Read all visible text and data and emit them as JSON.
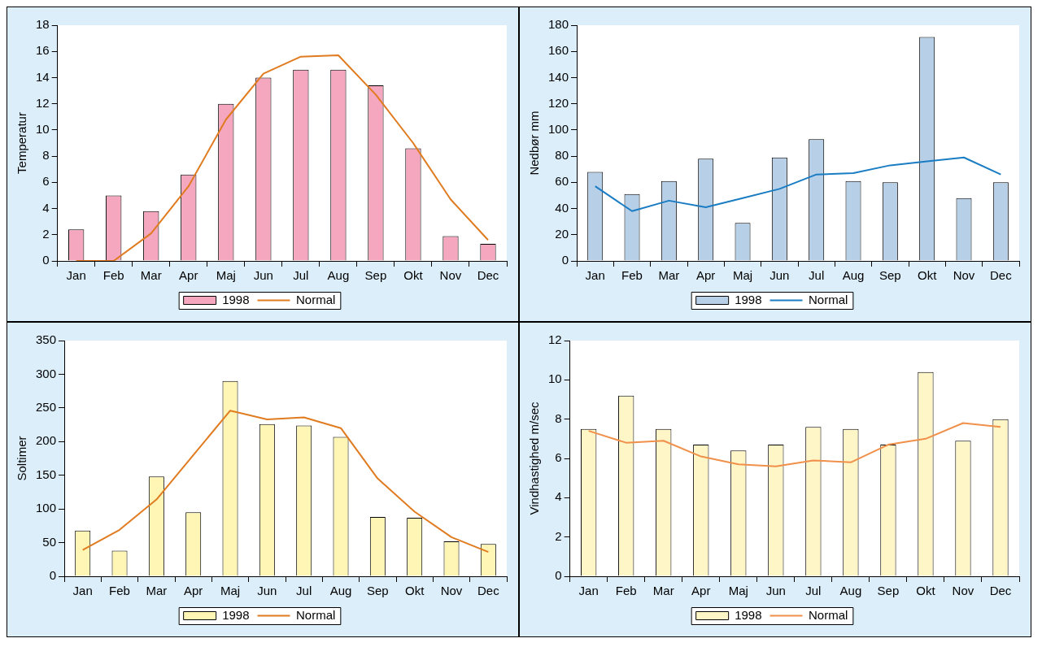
{
  "chart_data": [
    {
      "type": "bar",
      "ylabel": "Temperatur",
      "categories": [
        "Jan",
        "Feb",
        "Mar",
        "Apr",
        "Maj",
        "Jun",
        "Jul",
        "Aug",
        "Sep",
        "Okt",
        "Nov",
        "Dec"
      ],
      "ylim": [
        0,
        18
      ],
      "yticks": [
        0,
        2,
        4,
        6,
        8,
        10,
        12,
        14,
        16,
        18
      ],
      "grid": false,
      "legend": "bottom",
      "marker": "none",
      "series": [
        {
          "name": "1998",
          "color": "#f4a7bf",
          "values": [
            2.4,
            5.0,
            3.8,
            6.6,
            12.0,
            14.0,
            14.6,
            14.6,
            13.4,
            8.6,
            1.9,
            1.3
          ]
        },
        {
          "name": "Normal",
          "type": "line",
          "color": "#e07b20",
          "values": [
            0,
            0,
            2.1,
            5.7,
            10.8,
            14.3,
            15.6,
            15.7,
            12.7,
            9.0,
            4.7,
            1.6
          ]
        }
      ]
    },
    {
      "type": "bar",
      "ylabel": "Nedbør mm",
      "categories": [
        "Jan",
        "Feb",
        "Mar",
        "Apr",
        "Maj",
        "Jun",
        "Jul",
        "Aug",
        "Sep",
        "Okt",
        "Nov",
        "Dec"
      ],
      "ylim": [
        0,
        180
      ],
      "yticks": [
        0,
        20,
        40,
        60,
        80,
        100,
        120,
        140,
        160,
        180
      ],
      "grid": false,
      "legend": "bottom",
      "marker": "none",
      "series": [
        {
          "name": "1998",
          "color": "#b8cfe8",
          "values": [
            68,
            51,
            61,
            78,
            29,
            79,
            93,
            61,
            60,
            171,
            48,
            60
          ]
        },
        {
          "name": "Normal",
          "type": "line",
          "color": "#1a7dc4",
          "values": [
            57,
            38,
            46,
            41,
            48,
            55,
            66,
            67,
            73,
            76,
            79,
            66
          ]
        }
      ]
    },
    {
      "type": "bar",
      "ylabel": "Soltimer",
      "categories": [
        "Jan",
        "Feb",
        "Mar",
        "Apr",
        "Maj",
        "Jun",
        "Jul",
        "Aug",
        "Sep",
        "Okt",
        "Nov",
        "Dec"
      ],
      "ylim": [
        0,
        350
      ],
      "yticks": [
        0,
        50,
        100,
        150,
        200,
        250,
        300,
        350
      ],
      "grid": false,
      "legend": "bottom",
      "marker": "none",
      "series": [
        {
          "name": "1998",
          "color": "#fff6b5",
          "values": [
            68,
            38,
            148,
            95,
            290,
            226,
            224,
            207,
            88,
            87,
            52,
            48
          ]
        },
        {
          "name": "Normal",
          "type": "line",
          "color": "#e07b20",
          "values": [
            39,
            69,
            114,
            180,
            246,
            233,
            236,
            220,
            145,
            96,
            58,
            36
          ]
        }
      ]
    },
    {
      "type": "bar",
      "ylabel": "Vindhastighed m/sec",
      "categories": [
        "Jan",
        "Feb",
        "Mar",
        "Apr",
        "Maj",
        "Jun",
        "Jul",
        "Aug",
        "Sep",
        "Okt",
        "Nov",
        "Dec"
      ],
      "ylim": [
        0,
        12
      ],
      "yticks": [
        0,
        2,
        4,
        6,
        8,
        10,
        12
      ],
      "grid": false,
      "legend": "bottom",
      "marker": "none",
      "series": [
        {
          "name": "1998",
          "color": "#fff6c8",
          "values": [
            7.5,
            9.2,
            7.5,
            6.7,
            6.4,
            6.7,
            7.6,
            7.5,
            6.7,
            10.4,
            6.9,
            8.0
          ]
        },
        {
          "name": "Normal",
          "type": "line",
          "color": "#f0904a",
          "values": [
            7.4,
            6.8,
            6.9,
            6.1,
            5.7,
            5.6,
            5.9,
            5.8,
            6.7,
            7.0,
            7.8,
            7.6
          ]
        }
      ]
    }
  ]
}
